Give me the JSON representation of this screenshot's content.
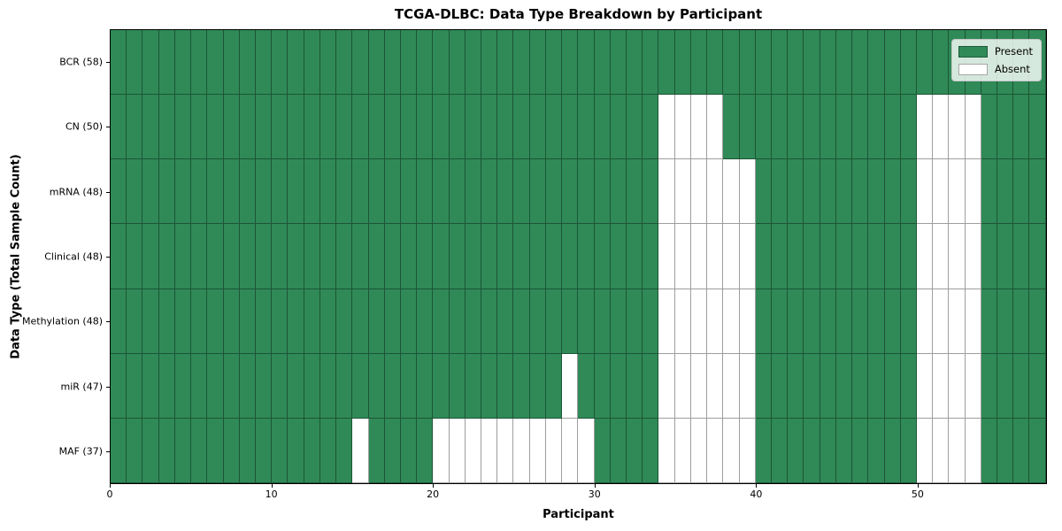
{
  "chart_data": {
    "type": "heatmap",
    "title": "TCGA-DLBC: Data Type Breakdown by Participant",
    "xlabel": "Participant",
    "ylabel": "Data Type (Total Sample Count)",
    "n_participants": 58,
    "x_range": [
      0,
      58
    ],
    "x_ticks": [
      0,
      10,
      20,
      30,
      40,
      50
    ],
    "legend_position": "upper right",
    "grid": "cell borders only, no axis gridlines",
    "colors": {
      "present": "#2f8a57",
      "absent": "#ffffff",
      "cell_edge": "rgba(0,0,0,0.38)"
    },
    "legend": [
      {
        "label": "Present",
        "color": "#2f8a57"
      },
      {
        "label": "Absent",
        "color": "#ffffff"
      }
    ],
    "rows": [
      {
        "label": "BCR (58)",
        "data_type": "BCR",
        "present_count": 58,
        "absent_participants": []
      },
      {
        "label": "CN (50)",
        "data_type": "CN",
        "present_count": 50,
        "absent_participants": [
          34,
          35,
          36,
          37,
          50,
          51,
          52,
          53
        ]
      },
      {
        "label": "mRNA (48)",
        "data_type": "mRNA",
        "present_count": 48,
        "absent_participants": [
          34,
          35,
          36,
          37,
          38,
          39,
          50,
          51,
          52,
          53
        ]
      },
      {
        "label": "Clinical (48)",
        "data_type": "Clinical",
        "present_count": 48,
        "absent_participants": [
          34,
          35,
          36,
          37,
          38,
          39,
          50,
          51,
          52,
          53
        ]
      },
      {
        "label": "Methylation (48)",
        "data_type": "Methylation",
        "present_count": 48,
        "absent_participants": [
          34,
          35,
          36,
          37,
          38,
          39,
          50,
          51,
          52,
          53
        ]
      },
      {
        "label": "miR (47)",
        "data_type": "miR",
        "present_count": 47,
        "absent_participants": [
          28,
          34,
          35,
          36,
          37,
          38,
          39,
          50,
          51,
          52,
          53
        ]
      },
      {
        "label": "MAF (37)",
        "data_type": "MAF",
        "present_count": 37,
        "absent_participants": [
          15,
          20,
          21,
          22,
          23,
          24,
          25,
          26,
          27,
          28,
          29,
          34,
          35,
          36,
          37,
          38,
          39,
          50,
          51,
          52,
          53
        ]
      }
    ]
  }
}
